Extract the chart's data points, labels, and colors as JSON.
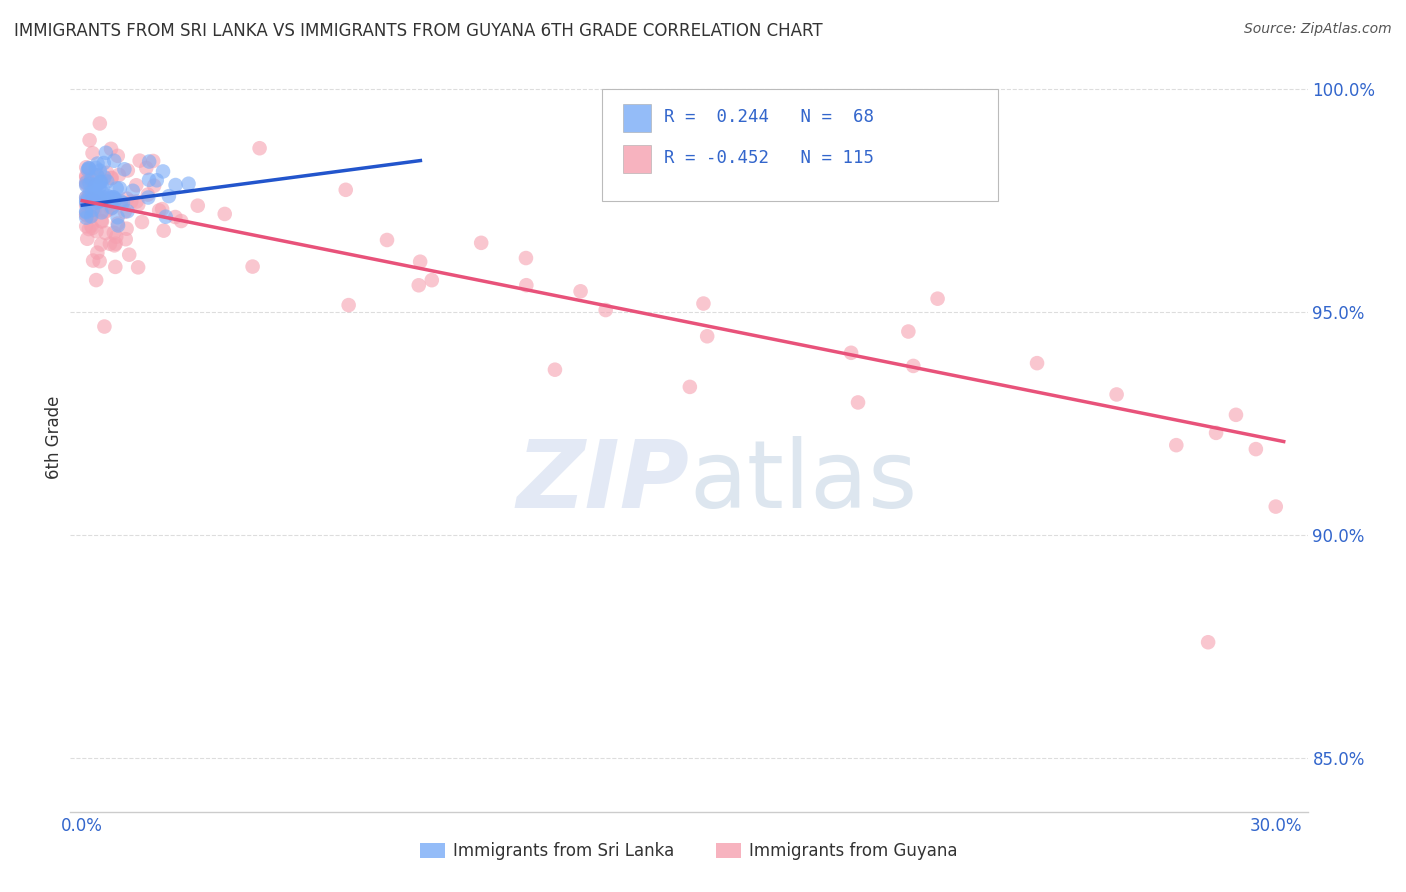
{
  "title": "IMMIGRANTS FROM SRI LANKA VS IMMIGRANTS FROM GUYANA 6TH GRADE CORRELATION CHART",
  "source": "Source: ZipAtlas.com",
  "ylabel": "6th Grade",
  "sri_lanka_color": "#7aabf7",
  "guyana_color": "#f5a0b0",
  "trendline_sri_lanka": "#2255cc",
  "trendline_guyana": "#e8527a",
  "background_color": "#ffffff",
  "grid_color": "#dddddd",
  "ylim": [
    0.838,
    1.006
  ],
  "xlim": [
    -0.003,
    0.308
  ],
  "yticks": [
    0.85,
    0.9,
    0.95,
    1.0
  ],
  "ytick_labels": [
    "85.0%",
    "90.0%",
    "95.0%",
    "100.0%"
  ],
  "xtick_labels": [
    "0.0%",
    "",
    "",
    "",
    "",
    "",
    "30.0%"
  ],
  "legend_r1_text": "R =  0.244   N =  68",
  "legend_r2_text": "R = -0.452   N = 115",
  "bottom_legend": [
    "Immigrants from Sri Lanka",
    "Immigrants from Guyana"
  ],
  "trendline_sl_x0": 0.0,
  "trendline_sl_x1": 0.085,
  "trendline_sl_y0": 0.974,
  "trendline_sl_y1": 0.984,
  "trendline_gy_x0": 0.0,
  "trendline_gy_x1": 0.302,
  "trendline_gy_y0": 0.975,
  "trendline_gy_y1": 0.921
}
